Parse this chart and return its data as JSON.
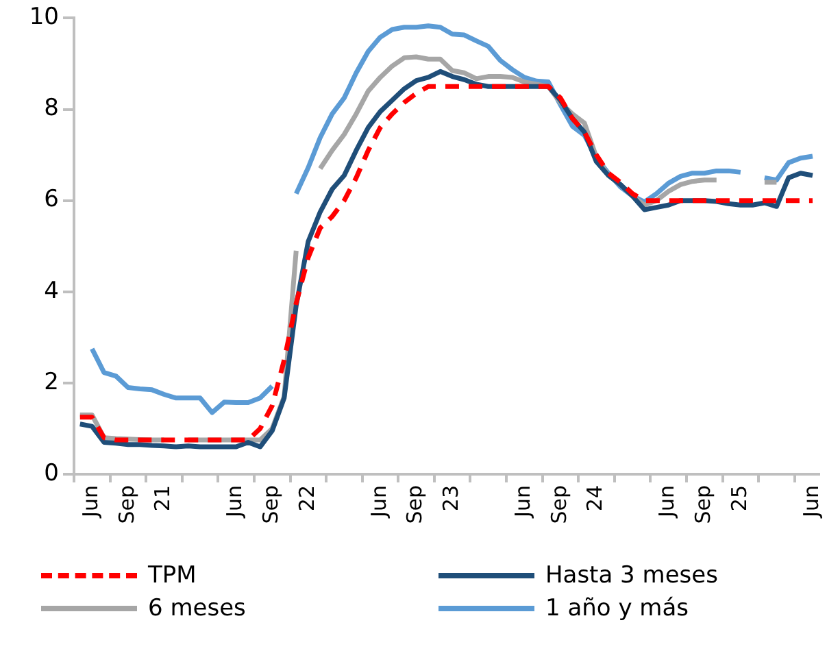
{
  "chart_data": {
    "type": "line",
    "categories": [
      null,
      "Jun",
      null,
      null,
      "Sep",
      null,
      null,
      "21",
      null,
      null,
      null,
      null,
      null,
      "Jun",
      null,
      null,
      "Sep",
      null,
      null,
      "22",
      null,
      null,
      null,
      null,
      null,
      "Jun",
      null,
      null,
      "Sep",
      null,
      null,
      "23",
      null,
      null,
      null,
      null,
      null,
      "Jun",
      null,
      null,
      "Sep",
      null,
      null,
      "24",
      null,
      null,
      null,
      null,
      null,
      "Jun",
      null,
      null,
      "Sep",
      null,
      null,
      "25",
      null,
      null,
      null,
      null,
      null,
      "Jun"
    ],
    "series": [
      {
        "name": "TPM",
        "color": "#ff0000",
        "line_style": "dashed",
        "values": [
          1.25,
          1.25,
          0.8,
          0.75,
          0.75,
          0.75,
          0.75,
          0.75,
          0.75,
          0.75,
          0.75,
          0.75,
          0.75,
          0.75,
          0.75,
          1.0,
          1.5,
          2.5,
          3.75,
          4.75,
          5.4,
          5.65,
          6.0,
          6.5,
          7.1,
          7.6,
          7.9,
          8.15,
          8.35,
          8.5,
          8.5,
          8.5,
          8.5,
          8.5,
          8.5,
          8.5,
          8.5,
          8.5,
          8.5,
          8.5,
          8.25,
          7.8,
          7.5,
          7.0,
          6.6,
          6.4,
          6.15,
          6.0,
          6.0,
          6.0,
          6.0,
          6.0,
          6.0,
          6.0,
          6.0,
          6.0,
          6.0,
          6.0,
          6.0,
          6.0,
          6.0,
          6.0
        ]
      },
      {
        "name": "Hasta 3 meses",
        "color": "#1f4e79",
        "values": [
          1.1,
          1.05,
          0.7,
          0.68,
          0.65,
          0.65,
          0.63,
          0.62,
          0.6,
          0.62,
          0.6,
          0.6,
          0.6,
          0.6,
          0.7,
          0.6,
          0.95,
          1.67,
          3.7,
          5.1,
          5.75,
          6.25,
          6.55,
          7.1,
          7.6,
          7.95,
          8.2,
          8.45,
          8.63,
          8.7,
          8.83,
          8.72,
          8.65,
          8.55,
          8.5,
          8.5,
          8.5,
          8.5,
          8.5,
          8.5,
          8.2,
          7.8,
          7.5,
          6.85,
          6.55,
          6.35,
          6.1,
          5.8,
          5.85,
          5.9,
          6.0,
          6.0,
          6.0,
          5.98,
          5.93,
          5.9,
          5.9,
          5.95,
          5.87,
          6.5,
          6.6,
          6.55
        ]
      },
      {
        "name": "6 meses",
        "color": "#a6a6a6",
        "values": [
          1.3,
          1.3,
          0.8,
          0.78,
          0.77,
          0.76,
          0.75,
          0.75,
          null,
          0.75,
          0.75,
          0.75,
          0.75,
          0.75,
          0.75,
          0.75,
          1.0,
          1.7,
          4.9,
          null,
          6.7,
          7.1,
          7.45,
          7.9,
          8.4,
          8.7,
          8.95,
          9.13,
          9.15,
          9.1,
          9.1,
          8.85,
          8.8,
          8.67,
          8.72,
          8.72,
          8.7,
          8.6,
          8.55,
          8.5,
          8.15,
          7.9,
          7.7,
          6.95,
          6.55,
          6.35,
          6.1,
          5.9,
          6.0,
          6.2,
          6.35,
          6.42,
          6.45,
          6.45,
          null,
          null,
          null,
          6.4,
          6.4,
          null,
          null,
          null
        ]
      },
      {
        "name": "1 año y más",
        "color": "#5b9bd5",
        "values": [
          null,
          2.75,
          2.23,
          2.15,
          1.9,
          1.87,
          1.85,
          1.75,
          1.67,
          1.67,
          1.67,
          1.35,
          1.58,
          1.57,
          1.57,
          1.67,
          1.93,
          null,
          6.15,
          6.72,
          7.38,
          7.9,
          8.25,
          8.8,
          9.27,
          9.58,
          9.75,
          9.8,
          9.8,
          9.83,
          9.8,
          9.65,
          9.63,
          9.5,
          9.38,
          9.07,
          8.87,
          8.7,
          8.62,
          8.6,
          8.1,
          7.63,
          7.43,
          6.93,
          6.6,
          6.3,
          6.1,
          5.97,
          6.15,
          6.38,
          6.53,
          6.6,
          6.6,
          6.65,
          6.65,
          6.62,
          null,
          6.5,
          6.45,
          6.83,
          6.93,
          6.97
        ]
      }
    ],
    "ylim": [
      0,
      10
    ],
    "yticks": [
      0,
      2,
      4,
      6,
      8,
      10
    ],
    "grid": false,
    "legend": "bottom",
    "marker": "none"
  }
}
